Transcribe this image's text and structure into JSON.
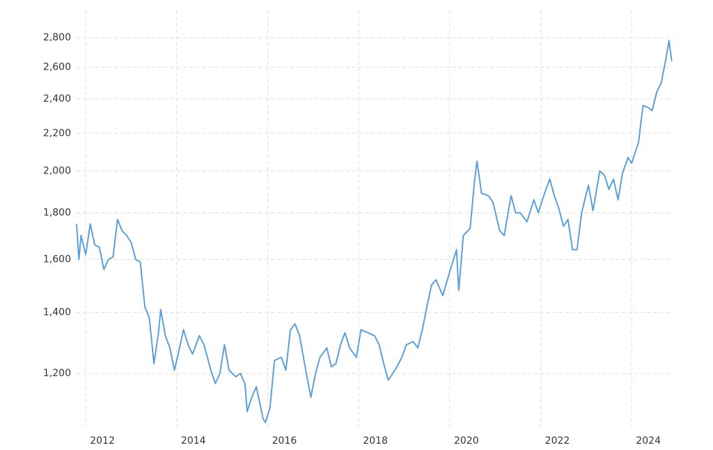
{
  "chart_data": {
    "type": "line",
    "x": [
      2011.8,
      2011.85,
      2011.9,
      2012.0,
      2012.1,
      2012.2,
      2012.3,
      2012.4,
      2012.5,
      2012.6,
      2012.7,
      2012.8,
      2012.9,
      2013.0,
      2013.1,
      2013.2,
      2013.3,
      2013.4,
      2013.5,
      2013.6,
      2013.65,
      2013.75,
      2013.85,
      2013.95,
      2014.0,
      2014.15,
      2014.25,
      2014.35,
      2014.5,
      2014.6,
      2014.75,
      2014.85,
      2014.95,
      2015.05,
      2015.15,
      2015.3,
      2015.4,
      2015.5,
      2015.55,
      2015.65,
      2015.75,
      2015.9,
      2015.95,
      2016.05,
      2016.15,
      2016.3,
      2016.4,
      2016.5,
      2016.6,
      2016.7,
      2016.85,
      2016.95,
      2017.05,
      2017.15,
      2017.3,
      2017.4,
      2017.5,
      2017.6,
      2017.7,
      2017.8,
      2017.95,
      2018.05,
      2018.2,
      2018.35,
      2018.45,
      2018.55,
      2018.65,
      2018.8,
      2018.95,
      2019.05,
      2019.2,
      2019.3,
      2019.4,
      2019.5,
      2019.6,
      2019.7,
      2019.85,
      2019.95,
      2020.05,
      2020.15,
      2020.2,
      2020.3,
      2020.45,
      2020.55,
      2020.6,
      2020.7,
      2020.85,
      2020.95,
      2021.1,
      2021.2,
      2021.35,
      2021.45,
      2021.55,
      2021.7,
      2021.85,
      2021.95,
      2022.1,
      2022.2,
      2022.3,
      2022.4,
      2022.5,
      2022.6,
      2022.7,
      2022.8,
      2022.9,
      2023.05,
      2023.15,
      2023.3,
      2023.4,
      2023.5,
      2023.6,
      2023.7,
      2023.8,
      2023.92,
      2024.0,
      2024.15,
      2024.25,
      2024.35,
      2024.45,
      2024.55,
      2024.65,
      2024.75,
      2024.82,
      2024.88
    ],
    "series": [
      {
        "color": "#5b9fdb",
        "values": [
          1750,
          1600,
          1700,
          1620,
          1750,
          1660,
          1650,
          1560,
          1600,
          1610,
          1770,
          1720,
          1700,
          1670,
          1600,
          1590,
          1420,
          1380,
          1230,
          1330,
          1410,
          1320,
          1280,
          1210,
          1240,
          1340,
          1290,
          1260,
          1320,
          1290,
          1210,
          1170,
          1200,
          1290,
          1210,
          1190,
          1200,
          1170,
          1090,
          1130,
          1160,
          1070,
          1060,
          1100,
          1240,
          1250,
          1210,
          1340,
          1360,
          1320,
          1200,
          1130,
          1200,
          1250,
          1280,
          1220,
          1230,
          1290,
          1330,
          1280,
          1250,
          1340,
          1330,
          1320,
          1290,
          1230,
          1180,
          1210,
          1250,
          1290,
          1300,
          1280,
          1340,
          1420,
          1500,
          1520,
          1460,
          1520,
          1580,
          1640,
          1480,
          1700,
          1730,
          1960,
          2050,
          1890,
          1880,
          1850,
          1720,
          1700,
          1880,
          1800,
          1800,
          1760,
          1860,
          1800,
          1900,
          1960,
          1880,
          1820,
          1740,
          1770,
          1640,
          1640,
          1800,
          1930,
          1810,
          2000,
          1980,
          1910,
          1960,
          1860,
          1990,
          2070,
          2040,
          2150,
          2360,
          2350,
          2330,
          2440,
          2500,
          2650,
          2780,
          2640
        ]
      }
    ],
    "xlim": [
      2011.8,
      2024.9
    ],
    "xticks": [
      2012,
      2014,
      2016,
      2018,
      2020,
      2022,
      2024
    ],
    "ylim": [
      1050,
      3000
    ],
    "yticks": [
      {
        "value": 1200,
        "label": "1,200"
      },
      {
        "value": 1400,
        "label": "1,400"
      },
      {
        "value": 1600,
        "label": "1,600"
      },
      {
        "value": 1800,
        "label": "1,800"
      },
      {
        "value": 2000,
        "label": "2,000"
      },
      {
        "value": 2200,
        "label": "2,200"
      },
      {
        "value": 2400,
        "label": "2,400"
      },
      {
        "value": 2600,
        "label": "2,600"
      },
      {
        "value": 2800,
        "label": "2,800"
      }
    ],
    "log_scale": true,
    "grid": true
  }
}
